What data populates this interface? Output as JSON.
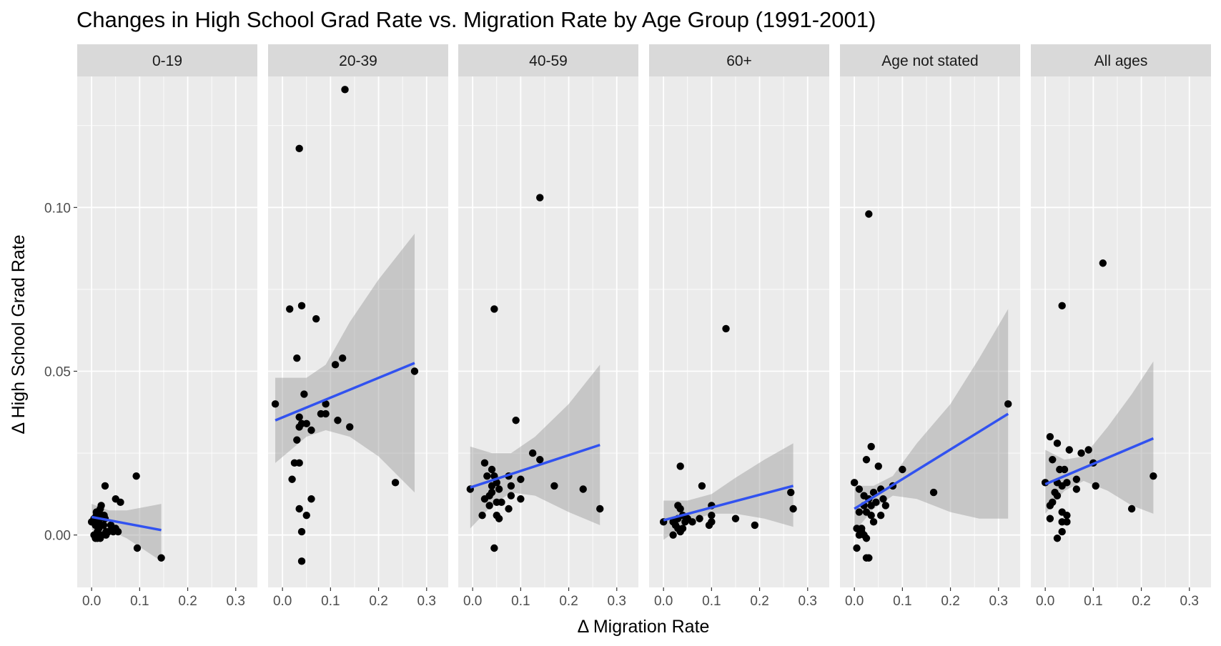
{
  "chart_data": {
    "type": "scatter",
    "title": "Changes in High School Grad Rate vs. Migration Rate by Age Group (1991-2001)",
    "xlabel": "Δ Migration Rate",
    "ylabel": "Δ High School Grad Rate",
    "xlim": [
      -0.03,
      0.345
    ],
    "ylim": [
      -0.016,
      0.14
    ],
    "x_ticks": [
      0.0,
      0.1,
      0.2,
      0.3
    ],
    "x_tick_labels": [
      "0.0",
      "0.1",
      "0.2",
      "0.3"
    ],
    "y_ticks": [
      0.0,
      0.05,
      0.1
    ],
    "y_tick_labels": [
      "0.00",
      "0.05",
      "0.10"
    ],
    "grid": true,
    "colors": {
      "panel_bg": "#ebebeb",
      "strip_bg": "#d9d9d9",
      "grid": "#ffffff",
      "point": "#000000",
      "fit_line": "#3152f0",
      "ribbon": "#999999"
    },
    "panels": [
      {
        "label": "0-19",
        "points": [
          [
            0.0,
            0.004
          ],
          [
            0.005,
            0.005
          ],
          [
            0.008,
            0.003
          ],
          [
            0.01,
            0.006
          ],
          [
            0.012,
            0.001
          ],
          [
            0.015,
            0.004
          ],
          [
            0.018,
            0.008
          ],
          [
            0.02,
            0.009
          ],
          [
            0.022,
            0.006
          ],
          [
            0.025,
            0.003
          ],
          [
            0.028,
            0.005
          ],
          [
            0.03,
            0.001
          ],
          [
            0.005,
            0.0
          ],
          [
            0.008,
            -0.001
          ],
          [
            0.012,
            -0.001
          ],
          [
            0.015,
            0.002
          ],
          [
            0.018,
            -0.001
          ],
          [
            0.022,
            0.0
          ],
          [
            0.03,
            0.0
          ],
          [
            0.035,
            0.001
          ],
          [
            0.04,
            0.003
          ],
          [
            0.045,
            0.001
          ],
          [
            0.05,
            0.002
          ],
          [
            0.055,
            0.001
          ],
          [
            0.06,
            0.01
          ],
          [
            0.05,
            0.011
          ],
          [
            0.028,
            0.015
          ],
          [
            0.093,
            0.018
          ],
          [
            0.095,
            -0.004
          ],
          [
            0.145,
            -0.007
          ],
          [
            0.01,
            0.007
          ],
          [
            0.016,
            0.005
          ],
          [
            0.026,
            0.006
          ]
        ],
        "fit": {
          "x0": 0.0,
          "y0": 0.0055,
          "x1": 0.145,
          "y1": 0.0015
        },
        "band": [
          [
            0.0,
            0.0015,
            0.0095
          ],
          [
            0.036,
            0.0015,
            0.0075
          ],
          [
            0.073,
            -0.001,
            0.0075
          ],
          [
            0.109,
            -0.0045,
            0.0085
          ],
          [
            0.145,
            -0.008,
            0.0095
          ]
        ]
      },
      {
        "label": "20-39",
        "points": [
          [
            0.13,
            0.136
          ],
          [
            0.035,
            0.118
          ],
          [
            0.015,
            0.069
          ],
          [
            0.04,
            0.07
          ],
          [
            0.07,
            0.066
          ],
          [
            0.03,
            0.054
          ],
          [
            0.125,
            0.054
          ],
          [
            0.11,
            0.052
          ],
          [
            0.275,
            0.05
          ],
          [
            -0.015,
            0.04
          ],
          [
            0.045,
            0.043
          ],
          [
            0.035,
            0.036
          ],
          [
            0.04,
            0.034
          ],
          [
            0.035,
            0.033
          ],
          [
            0.05,
            0.034
          ],
          [
            0.06,
            0.032
          ],
          [
            0.09,
            0.04
          ],
          [
            0.08,
            0.037
          ],
          [
            0.09,
            0.037
          ],
          [
            0.115,
            0.035
          ],
          [
            0.14,
            0.033
          ],
          [
            0.03,
            0.029
          ],
          [
            0.025,
            0.022
          ],
          [
            0.035,
            0.022
          ],
          [
            0.02,
            0.017
          ],
          [
            0.235,
            0.016
          ],
          [
            0.06,
            0.011
          ],
          [
            0.035,
            0.008
          ],
          [
            0.05,
            0.006
          ],
          [
            0.04,
            0.001
          ],
          [
            0.04,
            -0.008
          ]
        ],
        "fit": {
          "x0": -0.015,
          "y0": 0.035,
          "x1": 0.275,
          "y1": 0.0525
        },
        "band": [
          [
            -0.015,
            0.022,
            0.048
          ],
          [
            0.05,
            0.03,
            0.048
          ],
          [
            0.09,
            0.032,
            0.052
          ],
          [
            0.14,
            0.03,
            0.065
          ],
          [
            0.2,
            0.024,
            0.078
          ],
          [
            0.275,
            0.013,
            0.092
          ]
        ]
      },
      {
        "label": "40-59",
        "points": [
          [
            0.14,
            0.103
          ],
          [
            0.045,
            0.069
          ],
          [
            0.09,
            0.035
          ],
          [
            0.125,
            0.025
          ],
          [
            0.14,
            0.023
          ],
          [
            0.025,
            0.022
          ],
          [
            0.04,
            0.02
          ],
          [
            0.045,
            0.018
          ],
          [
            0.03,
            0.018
          ],
          [
            0.05,
            0.016
          ],
          [
            0.075,
            0.018
          ],
          [
            0.1,
            0.017
          ],
          [
            0.055,
            0.014
          ],
          [
            0.04,
            0.013
          ],
          [
            0.035,
            0.012
          ],
          [
            -0.005,
            0.014
          ],
          [
            0.025,
            0.011
          ],
          [
            0.05,
            0.01
          ],
          [
            0.06,
            0.01
          ],
          [
            0.08,
            0.015
          ],
          [
            0.08,
            0.012
          ],
          [
            0.1,
            0.011
          ],
          [
            0.075,
            0.008
          ],
          [
            0.17,
            0.015
          ],
          [
            0.23,
            0.014
          ],
          [
            0.265,
            0.008
          ],
          [
            0.05,
            0.006
          ],
          [
            0.055,
            0.005
          ],
          [
            0.02,
            0.006
          ],
          [
            0.045,
            -0.004
          ],
          [
            0.04,
            0.015
          ],
          [
            0.035,
            0.009
          ]
        ],
        "fit": {
          "x0": -0.005,
          "y0": 0.0145,
          "x1": 0.265,
          "y1": 0.0275
        },
        "band": [
          [
            -0.005,
            0.002,
            0.027
          ],
          [
            0.04,
            0.009,
            0.025
          ],
          [
            0.08,
            0.013,
            0.025
          ],
          [
            0.13,
            0.012,
            0.03
          ],
          [
            0.2,
            0.007,
            0.04
          ],
          [
            0.265,
            0.003,
            0.052
          ]
        ]
      },
      {
        "label": "60+",
        "points": [
          [
            0.13,
            0.063
          ],
          [
            0.035,
            0.021
          ],
          [
            0.08,
            0.015
          ],
          [
            0.265,
            0.013
          ],
          [
            0.1,
            0.009
          ],
          [
            0.03,
            0.009
          ],
          [
            0.035,
            0.008
          ],
          [
            0.04,
            0.006
          ],
          [
            0.03,
            0.005
          ],
          [
            0.045,
            0.004
          ],
          [
            0.05,
            0.005
          ],
          [
            0.06,
            0.004
          ],
          [
            0.1,
            0.006
          ],
          [
            0.1,
            0.004
          ],
          [
            0.15,
            0.005
          ],
          [
            0.19,
            0.003
          ],
          [
            0.27,
            0.008
          ],
          [
            0.0,
            0.004
          ],
          [
            0.02,
            0.004
          ],
          [
            0.025,
            0.003
          ],
          [
            0.03,
            0.002
          ],
          [
            0.035,
            0.001
          ],
          [
            0.04,
            0.002
          ],
          [
            0.02,
            0.0
          ],
          [
            0.075,
            0.005
          ],
          [
            0.095,
            0.003
          ]
        ],
        "fit": {
          "x0": 0.0,
          "y0": 0.0045,
          "x1": 0.27,
          "y1": 0.015
        },
        "band": [
          [
            0.0,
            -0.0015,
            0.0105
          ],
          [
            0.05,
            0.004,
            0.0105
          ],
          [
            0.1,
            0.0065,
            0.0125
          ],
          [
            0.15,
            0.0065,
            0.0175
          ],
          [
            0.21,
            0.005,
            0.023
          ],
          [
            0.27,
            0.0025,
            0.028
          ]
        ]
      },
      {
        "label": "Age not stated",
        "points": [
          [
            0.03,
            0.098
          ],
          [
            0.32,
            0.04
          ],
          [
            0.035,
            0.027
          ],
          [
            0.025,
            0.023
          ],
          [
            0.05,
            0.021
          ],
          [
            0.1,
            0.02
          ],
          [
            0.0,
            0.016
          ],
          [
            0.01,
            0.014
          ],
          [
            0.02,
            0.012
          ],
          [
            0.03,
            0.011
          ],
          [
            0.04,
            0.013
          ],
          [
            0.055,
            0.014
          ],
          [
            0.08,
            0.015
          ],
          [
            0.06,
            0.011
          ],
          [
            0.045,
            0.01
          ],
          [
            0.035,
            0.009
          ],
          [
            0.02,
            0.009
          ],
          [
            0.01,
            0.007
          ],
          [
            0.025,
            0.007
          ],
          [
            0.035,
            0.006
          ],
          [
            0.04,
            0.004
          ],
          [
            0.055,
            0.006
          ],
          [
            0.065,
            0.009
          ],
          [
            0.165,
            0.013
          ],
          [
            0.005,
            0.002
          ],
          [
            0.015,
            0.002
          ],
          [
            0.01,
            0.0
          ],
          [
            0.02,
            0.0
          ],
          [
            0.025,
            -0.001
          ],
          [
            0.005,
            -0.004
          ],
          [
            0.025,
            -0.007
          ],
          [
            0.03,
            -0.007
          ],
          [
            0.015,
            0.001
          ]
        ],
        "fit": {
          "x0": 0.0,
          "y0": 0.008,
          "x1": 0.32,
          "y1": 0.037
        },
        "band": [
          [
            0.0,
            0.001,
            0.015
          ],
          [
            0.04,
            0.008,
            0.015
          ],
          [
            0.08,
            0.012,
            0.018
          ],
          [
            0.13,
            0.011,
            0.028
          ],
          [
            0.2,
            0.007,
            0.04
          ],
          [
            0.26,
            0.005,
            0.054
          ],
          [
            0.32,
            0.005,
            0.069
          ]
        ]
      },
      {
        "label": "All ages",
        "points": [
          [
            0.12,
            0.083
          ],
          [
            0.035,
            0.07
          ],
          [
            0.01,
            0.03
          ],
          [
            0.025,
            0.028
          ],
          [
            0.05,
            0.026
          ],
          [
            0.075,
            0.025
          ],
          [
            0.09,
            0.026
          ],
          [
            0.015,
            0.023
          ],
          [
            0.03,
            0.02
          ],
          [
            0.04,
            0.02
          ],
          [
            0.1,
            0.022
          ],
          [
            0.0,
            0.016
          ],
          [
            0.025,
            0.016
          ],
          [
            0.035,
            0.015
          ],
          [
            0.045,
            0.016
          ],
          [
            0.065,
            0.017
          ],
          [
            0.065,
            0.014
          ],
          [
            0.105,
            0.015
          ],
          [
            0.02,
            0.013
          ],
          [
            0.025,
            0.012
          ],
          [
            0.015,
            0.01
          ],
          [
            0.01,
            0.009
          ],
          [
            0.035,
            0.007
          ],
          [
            0.045,
            0.006
          ],
          [
            0.01,
            0.005
          ],
          [
            0.035,
            0.004
          ],
          [
            0.045,
            0.004
          ],
          [
            0.18,
            0.008
          ],
          [
            0.225,
            0.018
          ],
          [
            0.035,
            0.001
          ],
          [
            0.025,
            -0.001
          ]
        ],
        "fit": {
          "x0": 0.0,
          "y0": 0.0155,
          "x1": 0.225,
          "y1": 0.0295
        },
        "band": [
          [
            0.0,
            0.0065,
            0.026
          ],
          [
            0.04,
            0.0135,
            0.023
          ],
          [
            0.08,
            0.0165,
            0.024
          ],
          [
            0.13,
            0.0135,
            0.033
          ],
          [
            0.18,
            0.009,
            0.043
          ],
          [
            0.225,
            0.0065,
            0.053
          ]
        ]
      }
    ]
  }
}
